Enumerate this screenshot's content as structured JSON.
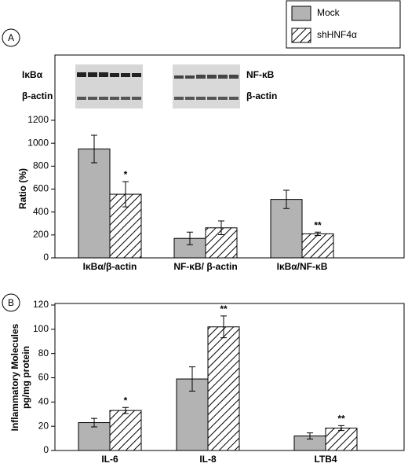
{
  "chart_data": [
    {
      "type": "bar",
      "panel": "A",
      "ylabel": "Ratio (%)",
      "blot_labels": [
        "IκBα",
        "β-actin",
        "NF-κB",
        "β-actin"
      ],
      "categories": [
        "IκBα/β-actin",
        "NF-κB/ β-actin",
        "IκBα/NF-κB"
      ],
      "series": [
        {
          "name": "Mock",
          "color": "#b3b3b3",
          "values": [
            950,
            170,
            510
          ],
          "errors": [
            120,
            55,
            80
          ]
        },
        {
          "name": "shHNF4α",
          "color": "#ffffff",
          "pattern": "hatch",
          "values": [
            555,
            262,
            210
          ],
          "errors": [
            110,
            60,
            15
          ],
          "significance": [
            "*",
            null,
            "**"
          ]
        }
      ],
      "ylim": [
        0,
        1200
      ],
      "yticks": [
        0,
        200,
        400,
        600,
        800,
        1000,
        1200
      ]
    },
    {
      "type": "bar",
      "panel": "B",
      "ylabel": [
        "Inflammatory Molecules",
        "pg/mg protein"
      ],
      "categories": [
        "IL-6",
        "IL-8",
        "LTB4"
      ],
      "series": [
        {
          "color": "#b3b3b3",
          "values": [
            23,
            59,
            12
          ],
          "errors": [
            3.5,
            10,
            2.5
          ]
        },
        {
          "color": "#ffffff",
          "pattern": "hatch",
          "values": [
            33,
            102,
            18.5
          ],
          "errors": [
            2.5,
            9,
            2
          ],
          "significance": [
            "*",
            "**",
            "**"
          ]
        }
      ],
      "ylim": [
        0,
        120
      ],
      "yticks": [
        0,
        20,
        40,
        60,
        80,
        100,
        120
      ]
    }
  ]
}
